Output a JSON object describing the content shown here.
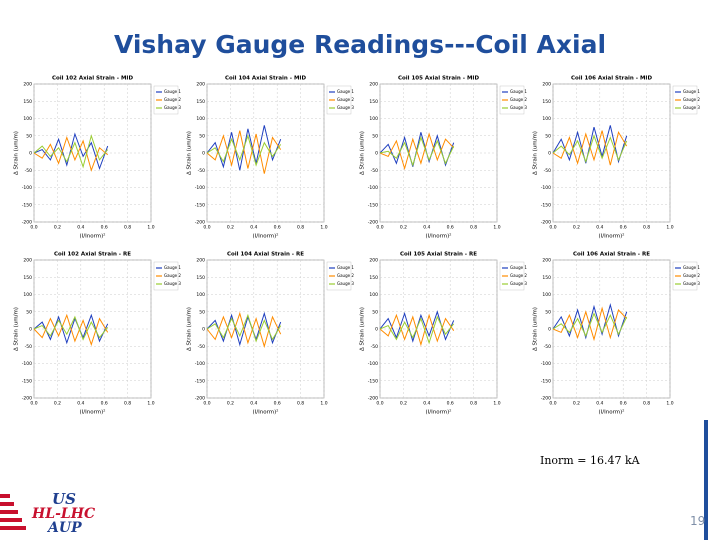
{
  "title": "Vishay Gauge Readings---Coil Axial",
  "note": "Inorm = 16.47 kA",
  "page_number": "19",
  "logo": {
    "line1": "US",
    "line2": "HL-LHC",
    "line3": "AUP"
  },
  "axes": {
    "xlabel": "(I/Inorm)²",
    "ylabel": "Δ Strain (um/m)",
    "xlim": [
      0,
      1
    ],
    "xticks": [
      {
        "value": 0,
        "label": "0.0"
      },
      0.2,
      0.4,
      0.6,
      0.8,
      {
        "value": 1,
        "label": "1.0"
      }
    ],
    "ylim": [
      -200,
      200
    ],
    "yticks": [
      200,
      150,
      100,
      50,
      0,
      -50,
      -100,
      -150,
      -200
    ],
    "grid": true
  },
  "charts": [
    {
      "type": "line",
      "title": "Coil 102 Axial Strain - MID",
      "x": [
        0,
        0.07,
        0.14,
        0.21,
        0.28,
        0.35,
        0.42,
        0.49,
        0.56,
        0.63
      ],
      "series": [
        {
          "name": "Gauge 1",
          "color": "#1f3fbf",
          "values": [
            0,
            10,
            -20,
            40,
            -35,
            55,
            -10,
            30,
            -45,
            20
          ]
        },
        {
          "name": "Gauge 2",
          "color": "#ff8c00",
          "values": [
            0,
            -15,
            25,
            -30,
            45,
            -20,
            35,
            -50,
            15,
            -5
          ]
        },
        {
          "name": "Gauge 3",
          "color": "#9acd32",
          "values": [
            0,
            20,
            -10,
            15,
            -25,
            30,
            -40,
            50,
            -20,
            10
          ]
        }
      ]
    },
    {
      "type": "line",
      "title": "Coil 104 Axial Strain - MID",
      "x": [
        0,
        0.07,
        0.14,
        0.21,
        0.28,
        0.35,
        0.42,
        0.49,
        0.56,
        0.63
      ],
      "series": [
        {
          "name": "Gauge 1",
          "color": "#1f3fbf",
          "values": [
            0,
            30,
            -40,
            60,
            -50,
            70,
            -30,
            80,
            -20,
            40
          ]
        },
        {
          "name": "Gauge 2",
          "color": "#ff8c00",
          "values": [
            0,
            -20,
            50,
            -35,
            65,
            -45,
            55,
            -60,
            45,
            10
          ]
        },
        {
          "name": "Gauge 3",
          "color": "#9acd32",
          "values": [
            0,
            15,
            -25,
            40,
            -20,
            50,
            -35,
            30,
            -10,
            25
          ]
        }
      ]
    },
    {
      "type": "line",
      "title": "Coil 105 Axial Strain - MID",
      "x": [
        0,
        0.07,
        0.14,
        0.21,
        0.28,
        0.35,
        0.42,
        0.49,
        0.56,
        0.63
      ],
      "series": [
        {
          "name": "Gauge 1",
          "color": "#1f3fbf",
          "values": [
            0,
            25,
            -30,
            45,
            -40,
            60,
            -25,
            50,
            -35,
            30
          ]
        },
        {
          "name": "Gauge 2",
          "color": "#ff8c00",
          "values": [
            0,
            -10,
            35,
            -45,
            40,
            -30,
            55,
            -20,
            40,
            15
          ]
        },
        {
          "name": "Gauge 3",
          "color": "#9acd32",
          "values": [
            0,
            5,
            -15,
            30,
            -35,
            45,
            -20,
            35,
            -30,
            20
          ]
        }
      ]
    },
    {
      "type": "line",
      "title": "Coil 106 Axial Strain - MID",
      "x": [
        0,
        0.07,
        0.14,
        0.21,
        0.28,
        0.35,
        0.42,
        0.49,
        0.56,
        0.63
      ],
      "series": [
        {
          "name": "Gauge 1",
          "color": "#1f3fbf",
          "values": [
            0,
            40,
            -20,
            60,
            -30,
            75,
            -10,
            80,
            -25,
            50
          ]
        },
        {
          "name": "Gauge 2",
          "color": "#ff8c00",
          "values": [
            0,
            -15,
            45,
            -30,
            55,
            -20,
            65,
            -35,
            60,
            20
          ]
        },
        {
          "name": "Gauge 3",
          "color": "#9acd32",
          "values": [
            0,
            20,
            -5,
            35,
            -25,
            50,
            -15,
            45,
            -20,
            35
          ]
        }
      ]
    },
    {
      "type": "line",
      "title": "Coil 102 Axial Strain - RE",
      "x": [
        0,
        0.07,
        0.14,
        0.21,
        0.28,
        0.35,
        0.42,
        0.49,
        0.56,
        0.63
      ],
      "series": [
        {
          "name": "Gauge 1",
          "color": "#1f3fbf",
          "values": [
            0,
            20,
            -30,
            35,
            -40,
            30,
            -25,
            40,
            -35,
            15
          ]
        },
        {
          "name": "Gauge 2",
          "color": "#ff8c00",
          "values": [
            0,
            -25,
            30,
            -20,
            40,
            -35,
            25,
            -45,
            30,
            -10
          ]
        },
        {
          "name": "Gauge 3",
          "color": "#9acd32",
          "values": [
            0,
            10,
            -20,
            25,
            -15,
            35,
            -30,
            20,
            -25,
            5
          ]
        }
      ]
    },
    {
      "type": "line",
      "title": "Coil 104 Axial Strain - RE",
      "x": [
        0,
        0.07,
        0.14,
        0.21,
        0.28,
        0.35,
        0.42,
        0.49,
        0.56,
        0.63
      ],
      "series": [
        {
          "name": "Gauge 1",
          "color": "#1f3fbf",
          "values": [
            0,
            25,
            -35,
            40,
            -45,
            35,
            -30,
            45,
            -40,
            20
          ]
        },
        {
          "name": "Gauge 2",
          "color": "#ff8c00",
          "values": [
            0,
            -30,
            35,
            -25,
            45,
            -40,
            30,
            -50,
            35,
            -15
          ]
        },
        {
          "name": "Gauge 3",
          "color": "#9acd32",
          "values": [
            0,
            15,
            -25,
            30,
            -20,
            40,
            -35,
            25,
            -30,
            10
          ]
        }
      ]
    },
    {
      "type": "line",
      "title": "Coil 105 Axial Strain - RE",
      "x": [
        0,
        0.07,
        0.14,
        0.21,
        0.28,
        0.35,
        0.42,
        0.49,
        0.56,
        0.63
      ],
      "series": [
        {
          "name": "Gauge 1",
          "color": "#1f3fbf",
          "values": [
            0,
            30,
            -25,
            45,
            -35,
            40,
            -20,
            50,
            -30,
            25
          ]
        },
        {
          "name": "Gauge 2",
          "color": "#ff8c00",
          "values": [
            0,
            -20,
            40,
            -30,
            35,
            -45,
            40,
            -35,
            30,
            -5
          ]
        },
        {
          "name": "Gauge 3",
          "color": "#9acd32",
          "values": [
            0,
            10,
            -30,
            20,
            -25,
            30,
            -40,
            35,
            -15,
            15
          ]
        }
      ]
    },
    {
      "type": "line",
      "title": "Coil 106 Axial Strain - RE",
      "x": [
        0,
        0.07,
        0.14,
        0.21,
        0.28,
        0.35,
        0.42,
        0.49,
        0.56,
        0.63
      ],
      "series": [
        {
          "name": "Gauge 1",
          "color": "#1f3fbf",
          "values": [
            0,
            35,
            -20,
            55,
            -25,
            65,
            -15,
            70,
            -20,
            50
          ]
        },
        {
          "name": "Gauge 2",
          "color": "#ff8c00",
          "values": [
            0,
            -10,
            40,
            -25,
            50,
            -30,
            60,
            -25,
            55,
            30
          ]
        },
        {
          "name": "Gauge 3",
          "color": "#9acd32",
          "values": [
            0,
            15,
            -10,
            30,
            -20,
            45,
            -10,
            40,
            -15,
            35
          ]
        }
      ]
    }
  ]
}
